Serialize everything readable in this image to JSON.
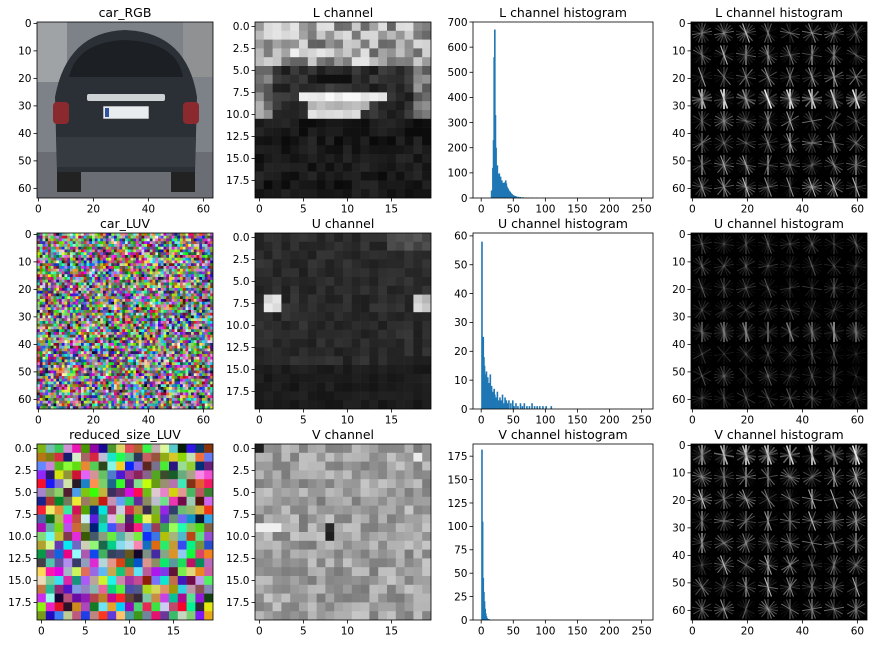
{
  "figure": {
    "background": "#ffffff",
    "bar_color": "#1f77b4"
  },
  "panels": [
    {
      "id": "car-rgb",
      "type": "image",
      "render": "car_photo",
      "title": "car_RGB",
      "xticks": [
        "0",
        "20",
        "40",
        "60"
      ],
      "xtick_values": [
        0,
        20,
        40,
        60
      ],
      "yticks": [
        "0",
        "10",
        "20",
        "30",
        "40",
        "50",
        "60"
      ],
      "ytick_values": [
        0,
        10,
        20,
        30,
        40,
        50,
        60
      ],
      "xlim": [
        -0.5,
        63.5
      ],
      "ylim": [
        -0.5,
        63.5
      ]
    },
    {
      "id": "l-channel",
      "type": "image",
      "render": "gray",
      "title": "L channel",
      "rows": 20,
      "cols": 20,
      "seed": 11,
      "base": 30,
      "xticks": [
        "0",
        "5",
        "10",
        "15"
      ],
      "xtick_values": [
        0,
        5,
        10,
        15
      ],
      "yticks": [
        "0.0",
        "2.5",
        "5.0",
        "7.5",
        "10.0",
        "12.5",
        "15.0",
        "17.5"
      ],
      "ytick_values": [
        0,
        2.5,
        5,
        7.5,
        10,
        12.5,
        15,
        17.5
      ],
      "xlim": [
        -0.5,
        19.5
      ],
      "ylim": [
        -0.5,
        19.5
      ]
    },
    {
      "id": "l-hist",
      "type": "histogram",
      "title": "L channel histogram",
      "xticks": [
        "0",
        "50",
        "100",
        "150",
        "200",
        "250"
      ],
      "xtick_values": [
        0,
        50,
        100,
        150,
        200,
        250
      ],
      "yticks": [
        "0",
        "100",
        "200",
        "300",
        "400",
        "500",
        "600",
        "700"
      ],
      "ytick_values": [
        0,
        100,
        200,
        300,
        400,
        500,
        600,
        700
      ],
      "xlim": [
        -12.75,
        267.75
      ],
      "ylim": [
        0,
        700
      ],
      "bins": [
        {
          "x": 15,
          "v": 30
        },
        {
          "x": 17,
          "v": 120
        },
        {
          "x": 18,
          "v": 230
        },
        {
          "x": 19,
          "v": 560
        },
        {
          "x": 20,
          "v": 670
        },
        {
          "x": 21,
          "v": 330
        },
        {
          "x": 22,
          "v": 200
        },
        {
          "x": 23,
          "v": 105
        },
        {
          "x": 24,
          "v": 130
        },
        {
          "x": 25,
          "v": 95
        },
        {
          "x": 26,
          "v": 82
        },
        {
          "x": 27,
          "v": 98
        },
        {
          "x": 28,
          "v": 75
        },
        {
          "x": 29,
          "v": 85
        },
        {
          "x": 30,
          "v": 65
        },
        {
          "x": 31,
          "v": 70
        },
        {
          "x": 32,
          "v": 55
        },
        {
          "x": 33,
          "v": 60
        },
        {
          "x": 34,
          "v": 48
        },
        {
          "x": 35,
          "v": 62
        },
        {
          "x": 36,
          "v": 52
        },
        {
          "x": 37,
          "v": 70
        },
        {
          "x": 38,
          "v": 58
        },
        {
          "x": 39,
          "v": 45
        },
        {
          "x": 40,
          "v": 40
        },
        {
          "x": 41,
          "v": 35
        },
        {
          "x": 42,
          "v": 30
        },
        {
          "x": 43,
          "v": 27
        },
        {
          "x": 44,
          "v": 24
        },
        {
          "x": 45,
          "v": 20
        },
        {
          "x": 46,
          "v": 17
        },
        {
          "x": 47,
          "v": 15
        },
        {
          "x": 48,
          "v": 12
        },
        {
          "x": 50,
          "v": 10
        },
        {
          "x": 52,
          "v": 8
        },
        {
          "x": 54,
          "v": 6
        },
        {
          "x": 57,
          "v": 5
        },
        {
          "x": 60,
          "v": 4
        },
        {
          "x": 64,
          "v": 3
        },
        {
          "x": 68,
          "v": 2
        },
        {
          "x": 72,
          "v": 2
        },
        {
          "x": 78,
          "v": 1
        },
        {
          "x": 85,
          "v": 1
        },
        {
          "x": 95,
          "v": 1
        }
      ]
    },
    {
      "id": "l-hog",
      "type": "image",
      "render": "hog",
      "title": "L channel histogram",
      "seed": 21,
      "highlight_rows": [
        3
      ],
      "intensity": 0.9,
      "xticks": [
        "0",
        "20",
        "40",
        "60"
      ],
      "xtick_values": [
        0,
        20,
        40,
        60
      ],
      "yticks": [
        "0",
        "10",
        "20",
        "30",
        "40",
        "50",
        "60"
      ],
      "ytick_values": [
        0,
        10,
        20,
        30,
        40,
        50,
        60
      ],
      "xlim": [
        -0.5,
        63.5
      ],
      "ylim": [
        -0.5,
        63.5
      ]
    },
    {
      "id": "car-luv",
      "type": "image",
      "render": "noise_fine",
      "title": "car_LUV",
      "rows": 64,
      "cols": 64,
      "seed": 5,
      "xticks": [
        "0",
        "20",
        "40",
        "60"
      ],
      "xtick_values": [
        0,
        20,
        40,
        60
      ],
      "yticks": [
        "0",
        "10",
        "20",
        "30",
        "40",
        "50",
        "60"
      ],
      "ytick_values": [
        0,
        10,
        20,
        30,
        40,
        50,
        60
      ],
      "xlim": [
        -0.5,
        63.5
      ],
      "ylim": [
        -0.5,
        63.5
      ]
    },
    {
      "id": "u-channel",
      "type": "image",
      "render": "gray",
      "title": "U channel",
      "rows": 20,
      "cols": 20,
      "seed": 17,
      "base": 25,
      "xticks": [
        "0",
        "5",
        "10",
        "15"
      ],
      "xtick_values": [
        0,
        5,
        10,
        15
      ],
      "yticks": [
        "0.0",
        "2.5",
        "5.0",
        "7.5",
        "10.0",
        "12.5",
        "15.0",
        "17.5"
      ],
      "ytick_values": [
        0,
        2.5,
        5,
        7.5,
        10,
        12.5,
        15,
        17.5
      ],
      "xlim": [
        -0.5,
        19.5
      ],
      "ylim": [
        -0.5,
        19.5
      ]
    },
    {
      "id": "u-hist",
      "type": "histogram",
      "title": "U channel histogram",
      "xticks": [
        "0",
        "50",
        "100",
        "150",
        "200",
        "250"
      ],
      "xtick_values": [
        0,
        50,
        100,
        150,
        200,
        250
      ],
      "yticks": [
        "0",
        "10",
        "20",
        "30",
        "40",
        "50",
        "60"
      ],
      "ytick_values": [
        0,
        10,
        20,
        30,
        40,
        50,
        60
      ],
      "xlim": [
        -12.75,
        267.75
      ],
      "ylim": [
        0,
        61
      ],
      "bins": [
        {
          "x": 0,
          "v": 58
        },
        {
          "x": 2,
          "v": 25
        },
        {
          "x": 3,
          "v": 18
        },
        {
          "x": 4,
          "v": 15
        },
        {
          "x": 5,
          "v": 10
        },
        {
          "x": 6,
          "v": 12
        },
        {
          "x": 7,
          "v": 13
        },
        {
          "x": 8,
          "v": 9
        },
        {
          "x": 9,
          "v": 11
        },
        {
          "x": 10,
          "v": 8
        },
        {
          "x": 11,
          "v": 9
        },
        {
          "x": 12,
          "v": 7
        },
        {
          "x": 13,
          "v": 12
        },
        {
          "x": 14,
          "v": 6
        },
        {
          "x": 15,
          "v": 8
        },
        {
          "x": 16,
          "v": 5
        },
        {
          "x": 17,
          "v": 6
        },
        {
          "x": 18,
          "v": 4
        },
        {
          "x": 19,
          "v": 7
        },
        {
          "x": 20,
          "v": 5
        },
        {
          "x": 22,
          "v": 4
        },
        {
          "x": 24,
          "v": 6
        },
        {
          "x": 26,
          "v": 3
        },
        {
          "x": 28,
          "v": 4
        },
        {
          "x": 30,
          "v": 3
        },
        {
          "x": 32,
          "v": 5
        },
        {
          "x": 34,
          "v": 2
        },
        {
          "x": 36,
          "v": 4
        },
        {
          "x": 38,
          "v": 3
        },
        {
          "x": 40,
          "v": 2
        },
        {
          "x": 42,
          "v": 3
        },
        {
          "x": 45,
          "v": 2
        },
        {
          "x": 48,
          "v": 3
        },
        {
          "x": 50,
          "v": 1
        },
        {
          "x": 53,
          "v": 2
        },
        {
          "x": 56,
          "v": 1
        },
        {
          "x": 60,
          "v": 2
        },
        {
          "x": 63,
          "v": 1
        },
        {
          "x": 66,
          "v": 2
        },
        {
          "x": 70,
          "v": 1
        },
        {
          "x": 74,
          "v": 1
        },
        {
          "x": 78,
          "v": 2
        },
        {
          "x": 82,
          "v": 1
        },
        {
          "x": 86,
          "v": 1
        },
        {
          "x": 90,
          "v": 1
        },
        {
          "x": 95,
          "v": 1
        },
        {
          "x": 100,
          "v": 1
        },
        {
          "x": 108,
          "v": 1
        }
      ]
    },
    {
      "id": "u-hog",
      "type": "image",
      "render": "hog",
      "title": "U channel histogram",
      "seed": 31,
      "highlight_rows": [
        4
      ],
      "intensity": 0.55,
      "xticks": [
        "0",
        "20",
        "40",
        "60"
      ],
      "xtick_values": [
        0,
        20,
        40,
        60
      ],
      "yticks": [
        "0",
        "10",
        "20",
        "30",
        "40",
        "50",
        "60"
      ],
      "ytick_values": [
        0,
        10,
        20,
        30,
        40,
        50,
        60
      ],
      "xlim": [
        -0.5,
        63.5
      ],
      "ylim": [
        -0.5,
        63.5
      ]
    },
    {
      "id": "reduced-luv",
      "type": "image",
      "render": "noise_coarse",
      "title": "reduced_size_LUV",
      "rows": 20,
      "cols": 20,
      "seed": 9,
      "xticks": [
        "0",
        "5",
        "10",
        "15"
      ],
      "xtick_values": [
        0,
        5,
        10,
        15
      ],
      "yticks": [
        "0.0",
        "2.5",
        "5.0",
        "7.5",
        "10.0",
        "12.5",
        "15.0",
        "17.5"
      ],
      "ytick_values": [
        0,
        2.5,
        5,
        7.5,
        10,
        12.5,
        15,
        17.5
      ],
      "xlim": [
        -0.5,
        19.5
      ],
      "ylim": [
        -0.5,
        19.5
      ]
    },
    {
      "id": "v-channel",
      "type": "image",
      "render": "gray",
      "title": "V channel",
      "rows": 20,
      "cols": 20,
      "seed": 23,
      "base": 160,
      "xticks": [
        "0",
        "5",
        "10",
        "15"
      ],
      "xtick_values": [
        0,
        5,
        10,
        15
      ],
      "yticks": [
        "0.0",
        "2.5",
        "5.0",
        "7.5",
        "10.0",
        "12.5",
        "15.0",
        "17.5"
      ],
      "ytick_values": [
        0,
        2.5,
        5,
        7.5,
        10,
        12.5,
        15,
        17.5
      ],
      "xlim": [
        -0.5,
        19.5
      ],
      "ylim": [
        -0.5,
        19.5
      ]
    },
    {
      "id": "v-hist",
      "type": "histogram",
      "title": "V channel histogram",
      "xticks": [
        "0",
        "50",
        "100",
        "150",
        "200",
        "250"
      ],
      "xtick_values": [
        0,
        50,
        100,
        150,
        200,
        250
      ],
      "yticks": [
        "0",
        "25",
        "50",
        "75",
        "100",
        "125",
        "150",
        "175"
      ],
      "ytick_values": [
        0,
        25,
        50,
        75,
        100,
        125,
        150,
        175
      ],
      "xlim": [
        -12.75,
        267.75
      ],
      "ylim": [
        0,
        188
      ],
      "bins": [
        {
          "x": 0,
          "v": 182
        },
        {
          "x": 1,
          "v": 105
        },
        {
          "x": 2,
          "v": 45
        },
        {
          "x": 3,
          "v": 30
        },
        {
          "x": 4,
          "v": 20
        },
        {
          "x": 5,
          "v": 12
        },
        {
          "x": 6,
          "v": 7
        },
        {
          "x": 7,
          "v": 4
        },
        {
          "x": 8,
          "v": 2
        },
        {
          "x": 9,
          "v": 1
        },
        {
          "x": 11,
          "v": 1
        }
      ]
    },
    {
      "id": "v-hog",
      "type": "image",
      "render": "hog",
      "title": "V channel histogram",
      "seed": 41,
      "highlight_rows": [
        0
      ],
      "intensity": 0.9,
      "xticks": [
        "0",
        "20",
        "40",
        "60"
      ],
      "xtick_values": [
        0,
        20,
        40,
        60
      ],
      "yticks": [
        "0",
        "10",
        "20",
        "30",
        "40",
        "50",
        "60"
      ],
      "ytick_values": [
        0,
        10,
        20,
        30,
        40,
        50,
        60
      ],
      "xlim": [
        -0.5,
        63.5
      ],
      "ylim": [
        -0.5,
        63.5
      ]
    }
  ],
  "chart_data": [
    {
      "type": "heatmap",
      "title": "car_RGB",
      "xlim": [
        0,
        63
      ],
      "ylim": [
        0,
        63
      ]
    },
    {
      "type": "heatmap",
      "title": "L channel",
      "xlim": [
        0,
        19
      ],
      "ylim": [
        0,
        19
      ]
    },
    {
      "type": "bar",
      "title": "L channel histogram",
      "xlim": [
        0,
        255
      ],
      "ylim": [
        0,
        700
      ]
    },
    {
      "type": "heatmap",
      "title": "L channel histogram",
      "xlim": [
        0,
        63
      ],
      "ylim": [
        0,
        63
      ]
    },
    {
      "type": "heatmap",
      "title": "car_LUV",
      "xlim": [
        0,
        63
      ],
      "ylim": [
        0,
        63
      ]
    },
    {
      "type": "heatmap",
      "title": "U channel",
      "xlim": [
        0,
        19
      ],
      "ylim": [
        0,
        19
      ]
    },
    {
      "type": "bar",
      "title": "U channel histogram",
      "xlim": [
        0,
        255
      ],
      "ylim": [
        0,
        60
      ]
    },
    {
      "type": "heatmap",
      "title": "U channel histogram",
      "xlim": [
        0,
        63
      ],
      "ylim": [
        0,
        63
      ]
    },
    {
      "type": "heatmap",
      "title": "reduced_size_LUV",
      "xlim": [
        0,
        19
      ],
      "ylim": [
        0,
        19
      ]
    },
    {
      "type": "heatmap",
      "title": "V channel",
      "xlim": [
        0,
        19
      ],
      "ylim": [
        0,
        19
      ]
    },
    {
      "type": "bar",
      "title": "V channel histogram",
      "xlim": [
        0,
        255
      ],
      "ylim": [
        0,
        175
      ]
    },
    {
      "type": "heatmap",
      "title": "V channel histogram",
      "xlim": [
        0,
        63
      ],
      "ylim": [
        0,
        63
      ]
    }
  ]
}
